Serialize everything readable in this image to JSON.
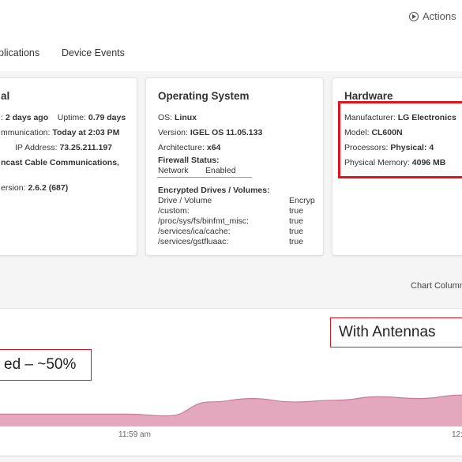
{
  "header": {
    "actions_label": "Actions"
  },
  "tabs": [
    {
      "label": "plications"
    },
    {
      "label": "Device Events"
    }
  ],
  "cards": {
    "general": {
      "title": "al",
      "lines": [
        {
          "prefix": ": ",
          "value": "2 days ago",
          "suffix": "    Uptime: ",
          "value2": "0.79 days"
        },
        {
          "prefix": "mmunication: ",
          "value": "Today at 2:03 PM"
        },
        {
          "prefix": "IP Address: ",
          "value": "73.25.211.197"
        },
        {
          "prefix": "",
          "value": "ncast Cable Communications,"
        },
        {
          "prefix": "ersion: ",
          "value": "2.6.2 (687)"
        }
      ]
    },
    "os": {
      "title": "Operating System",
      "os_label": "OS: ",
      "os_value": "Linux",
      "version_label": "Version: ",
      "version_value": "IGEL OS 11.05.133",
      "arch_label": "Architecture: ",
      "arch_value": "x64",
      "firewall_heading": "Firewall Status:",
      "firewall_col1": "Network",
      "firewall_col2": "Enabled",
      "drives_heading": "Encrypted Drives / Volumes:",
      "drives_col1": "Drive / Volume",
      "drives_col2": "Encryp",
      "drives": [
        {
          "volume": "/custom:",
          "value": "true"
        },
        {
          "volume": "/proc/sys/fs/binfmt_misc:",
          "value": "true"
        },
        {
          "volume": "/services/ica/cache:",
          "value": "true"
        },
        {
          "volume": "/services/gstfluaac:",
          "value": "true"
        }
      ]
    },
    "hardware": {
      "title": "Hardware",
      "manufacturer_label": "Manufacturer: ",
      "manufacturer_value": "LG Electronics",
      "model_label": "Model: ",
      "model_value": "CL600N",
      "processors_label": "Processors: ",
      "processors_value": "Physical: 4",
      "memory_label": "Physical Memory: ",
      "memory_value": "4096 MB"
    }
  },
  "chart_controls": {
    "label": "Chart Column"
  },
  "chart_data": {
    "type": "area",
    "x": [
      "",
      "",
      "",
      "",
      "",
      "",
      "",
      "",
      "",
      "",
      "",
      ""
    ],
    "values": [
      48,
      48,
      48,
      48,
      47,
      55,
      57,
      55,
      56,
      58,
      57,
      59
    ],
    "ylim": [
      0,
      100
    ],
    "tick_labels": [
      "11:59 am",
      "12:"
    ],
    "color": "#e3a8be",
    "stroke": "#c77d9a"
  },
  "callouts": {
    "left": "ed – ~50%",
    "right": "With Antennas"
  },
  "colors": {
    "highlight": "#e0141a",
    "area_fill": "#e3a8be"
  }
}
